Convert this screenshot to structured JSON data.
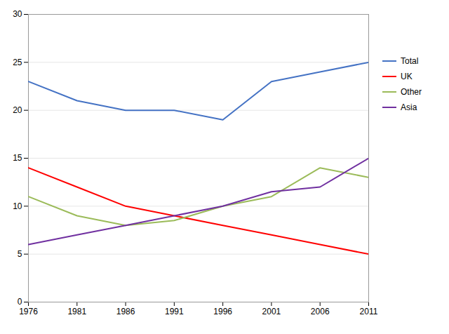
{
  "chart_data": {
    "type": "line",
    "x": [
      1976,
      1981,
      1986,
      1991,
      1996,
      2001,
      2006,
      2011
    ],
    "series": [
      {
        "name": "Total",
        "color": "#4472C4",
        "values": [
          23,
          21,
          20,
          20,
          19,
          23,
          24,
          25
        ]
      },
      {
        "name": "UK",
        "color": "#FF0000",
        "values": [
          14,
          12,
          10,
          9,
          8,
          7,
          6,
          5
        ]
      },
      {
        "name": "Other",
        "color": "#9BBB59",
        "values": [
          11,
          9,
          8,
          8.5,
          10,
          11,
          14,
          13
        ]
      },
      {
        "name": "Asia",
        "color": "#7030A0",
        "values": [
          6,
          7,
          8,
          9,
          10,
          11.5,
          12,
          15
        ]
      }
    ],
    "xlim": [
      1976,
      2011
    ],
    "xticks": [
      1976,
      1981,
      1986,
      1991,
      1996,
      2001,
      2006,
      2011
    ],
    "ylim": [
      0,
      30
    ],
    "yticks": [
      0,
      5,
      10,
      15,
      20,
      25,
      30
    ],
    "grid": true,
    "legend": "right"
  }
}
